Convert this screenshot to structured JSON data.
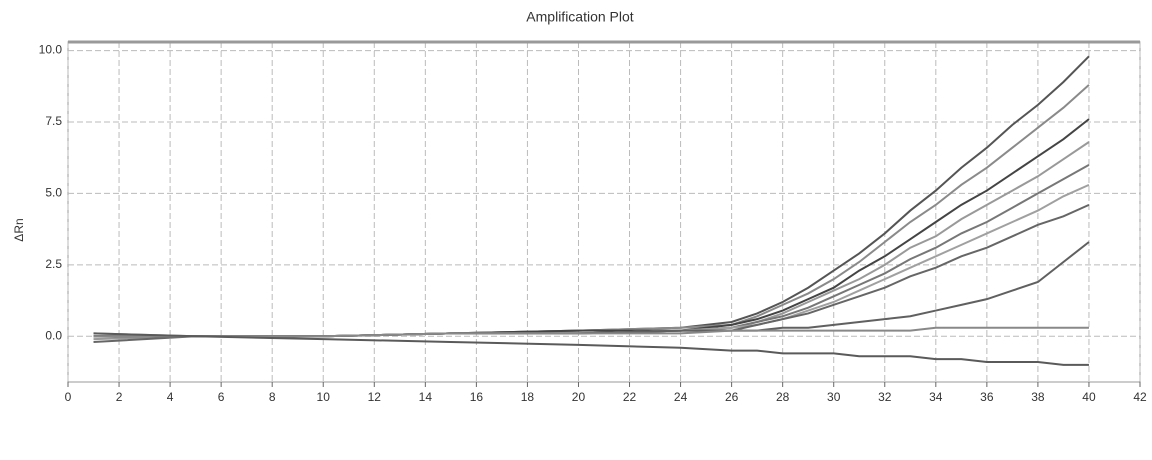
{
  "chart_data": {
    "type": "line",
    "title": "Amplification Plot",
    "y_label": "ΔRn",
    "xlim": [
      0,
      42
    ],
    "xticks": [
      0,
      2,
      4,
      6,
      8,
      10,
      12,
      14,
      16,
      18,
      20,
      22,
      24,
      26,
      28,
      30,
      32,
      34,
      36,
      38,
      40,
      42
    ],
    "ylim": [
      -1.6,
      10.3
    ],
    "yticks": [
      {
        "value": 0,
        "label": "0.0"
      },
      {
        "value": 2.5,
        "label": "2.5"
      },
      {
        "value": 5,
        "label": "5.0"
      },
      {
        "value": 7.5,
        "label": "7.5"
      },
      {
        "value": 10,
        "label": "10.0"
      }
    ],
    "grid": true,
    "x": [
      1,
      5,
      10,
      15,
      20,
      24,
      26,
      27,
      28,
      29,
      30,
      31,
      32,
      33,
      34,
      35,
      36,
      37,
      38,
      39,
      40
    ],
    "series": [
      {
        "color": "#555555",
        "values": [
          0,
          0,
          0,
          0.1,
          0.2,
          0.3,
          0.5,
          0.8,
          1.2,
          1.7,
          2.3,
          2.9,
          3.6,
          4.4,
          5.1,
          5.9,
          6.6,
          7.4,
          8.1,
          8.9,
          9.8
        ]
      },
      {
        "color": "#8a8a8a",
        "values": [
          0,
          0,
          0,
          0.1,
          0.2,
          0.3,
          0.4,
          0.7,
          1.1,
          1.5,
          2.0,
          2.6,
          3.3,
          4.0,
          4.6,
          5.3,
          5.9,
          6.6,
          7.3,
          8.0,
          8.8
        ]
      },
      {
        "color": "#444444",
        "values": [
          0,
          0,
          0,
          0.1,
          0.2,
          0.2,
          0.4,
          0.6,
          0.9,
          1.3,
          1.7,
          2.3,
          2.8,
          3.4,
          4.0,
          4.6,
          5.1,
          5.7,
          6.3,
          6.9,
          7.6
        ]
      },
      {
        "color": "#999999",
        "values": [
          -0.1,
          0,
          0,
          0.1,
          0.1,
          0.2,
          0.3,
          0.5,
          0.8,
          1.2,
          1.6,
          2.0,
          2.5,
          3.1,
          3.5,
          4.1,
          4.6,
          5.1,
          5.6,
          6.2,
          6.8
        ]
      },
      {
        "color": "#777777",
        "values": [
          0,
          0,
          0,
          0.1,
          0.1,
          0.2,
          0.3,
          0.5,
          0.7,
          1.0,
          1.4,
          1.8,
          2.2,
          2.7,
          3.1,
          3.6,
          4.0,
          4.5,
          5.0,
          5.5,
          6.0
        ]
      },
      {
        "color": "#a0a0a0",
        "values": [
          0.1,
          0,
          0,
          0.1,
          0.1,
          0.2,
          0.3,
          0.4,
          0.6,
          0.9,
          1.2,
          1.6,
          2.0,
          2.4,
          2.8,
          3.2,
          3.6,
          4.0,
          4.4,
          4.9,
          5.3
        ]
      },
      {
        "color": "#666666",
        "values": [
          -0.2,
          0,
          0,
          0.1,
          0.1,
          0.2,
          0.2,
          0.4,
          0.6,
          0.8,
          1.1,
          1.4,
          1.7,
          2.1,
          2.4,
          2.8,
          3.1,
          3.5,
          3.9,
          4.2,
          4.6
        ]
      },
      {
        "color": "#606060",
        "values": [
          0,
          0,
          0,
          0.1,
          0.1,
          0.2,
          0.2,
          0.2,
          0.3,
          0.3,
          0.4,
          0.5,
          0.6,
          0.7,
          0.9,
          1.1,
          1.3,
          1.6,
          1.9,
          2.6,
          3.3
        ]
      },
      {
        "color": "#888888",
        "values": [
          0,
          0,
          0,
          0.1,
          0.1,
          0.1,
          0.2,
          0.2,
          0.2,
          0.2,
          0.2,
          0.2,
          0.2,
          0.2,
          0.3,
          0.3,
          0.3,
          0.3,
          0.3,
          0.3,
          0.3
        ]
      },
      {
        "color": "#5a5a5a",
        "values": [
          0.1,
          0,
          -0.1,
          -0.2,
          -0.3,
          -0.4,
          -0.5,
          -0.5,
          -0.6,
          -0.6,
          -0.6,
          -0.7,
          -0.7,
          -0.7,
          -0.8,
          -0.8,
          -0.9,
          -0.9,
          -0.9,
          -1.0,
          -1.0
        ]
      }
    ]
  }
}
